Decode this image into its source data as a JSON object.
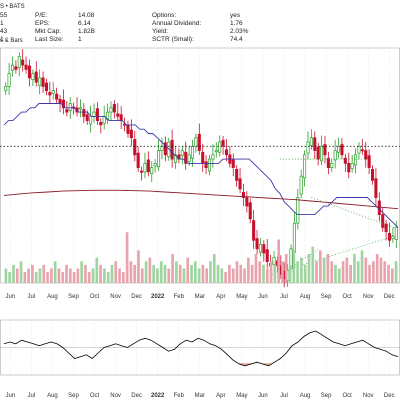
{
  "header": {
    "fragment_top": "S • BATS",
    "fragment_second": "s & Bars",
    "left_values": [
      "55",
      "1",
      "43",
      "1"
    ],
    "stats": [
      {
        "label": "P/E:",
        "value": "14.08"
      },
      {
        "label": "EPS:",
        "value": "6.14"
      },
      {
        "label": "Mkt Cap:",
        "value": "1.82B"
      },
      {
        "label": "Last Size:",
        "value": "1"
      }
    ],
    "stats2": [
      {
        "label": "Options:",
        "value": "yes"
      },
      {
        "label": "Annual Dividend:",
        "value": "1.76"
      },
      {
        "label": "Yield:",
        "value": "2.03%"
      },
      {
        "label": "SCTR (Small):",
        "value": "74.4"
      }
    ]
  },
  "colors": {
    "up": "#2ca02c",
    "down": "#c8102e",
    "ma_short": "#3a3aa8",
    "ma_long": "#8b1a2b",
    "volume_up": "#9fd39f",
    "volume_down": "#e8a3ad",
    "trend": "#2ca02c",
    "oscillator": "#000000",
    "oscillator_fill": "#d98b7a",
    "grid": "#cccccc"
  },
  "chart_data": {
    "type": "candlestick",
    "x_axis_labels": [
      "Jun",
      "Jul",
      "Aug",
      "Sep",
      "Oct",
      "Nov",
      "Dec",
      "2022",
      "Feb",
      "Mar",
      "Apr",
      "May",
      "Jun",
      "Jul",
      "Aug",
      "Sep",
      "Oct",
      "Nov",
      "Dec"
    ],
    "close_series": [
      66,
      69,
      71,
      70,
      73,
      71,
      70,
      68,
      69,
      67,
      68,
      66,
      65,
      64,
      65,
      63,
      62,
      61,
      60,
      62,
      61,
      60,
      61,
      59,
      58,
      59,
      60,
      58,
      57,
      59,
      60,
      61,
      60,
      59,
      58,
      57,
      55,
      54,
      50,
      47,
      46,
      48,
      46,
      47,
      48,
      51,
      52,
      50,
      53,
      49,
      50,
      49,
      51,
      48,
      50,
      52,
      54,
      51,
      48,
      47,
      49,
      50,
      51,
      53,
      52,
      50,
      48,
      47,
      44,
      42,
      40,
      38,
      35,
      30,
      28,
      29,
      27,
      25,
      24,
      26,
      24,
      22,
      21,
      23,
      28,
      34,
      40,
      45,
      50,
      53,
      54,
      51,
      49,
      52,
      50,
      47,
      48,
      51,
      52,
      50,
      48,
      46,
      48,
      50,
      52,
      51,
      49,
      47,
      44,
      40,
      36,
      33,
      32,
      30,
      31,
      33
    ],
    "ma_short_series": [
      57,
      58,
      58,
      59,
      60,
      60,
      61,
      61,
      62,
      62,
      62,
      62,
      62,
      62,
      61,
      61,
      61,
      60,
      60,
      60,
      59,
      59,
      59,
      59,
      58,
      58,
      58,
      58,
      57,
      57,
      57,
      56,
      56,
      55,
      55,
      54,
      53,
      52,
      51,
      50,
      49,
      49,
      48,
      48,
      48,
      48,
      48,
      48,
      48,
      48,
      49,
      49,
      49,
      49,
      49,
      49,
      49,
      48,
      47,
      46,
      45,
      44,
      42,
      41,
      39,
      38,
      37,
      36,
      36,
      36,
      36,
      36,
      37,
      38,
      38,
      39,
      40,
      40,
      40,
      40,
      40,
      40,
      40,
      40,
      39,
      38,
      37,
      36,
      35,
      34,
      33
    ],
    "ma_long_series": [
      40.5,
      40.8,
      41.1,
      41.3,
      41.5,
      41.6,
      41.7,
      41.7,
      41.7,
      41.6,
      41.5,
      41.3,
      41.1,
      40.9,
      40.7,
      40.5,
      40.3,
      40.1,
      39.9,
      39.7,
      39.5,
      39.2,
      38.9,
      38.6,
      38.3,
      38.0,
      37.7,
      37.4
    ],
    "reference_level": 52,
    "volume_series": [
      4,
      3,
      5,
      4,
      6,
      3,
      4,
      5,
      3,
      4,
      5,
      3,
      4,
      6,
      4,
      3,
      5,
      4,
      3,
      4,
      6,
      5,
      3,
      4,
      7,
      5,
      4,
      3,
      5,
      6,
      4,
      3,
      14,
      6,
      5,
      9,
      4,
      6,
      7,
      5,
      4,
      6,
      5,
      4,
      8,
      6,
      5,
      4,
      7,
      5,
      6,
      4,
      5,
      4,
      6,
      8,
      5,
      4,
      3,
      5,
      4,
      6,
      5,
      4,
      7,
      5,
      8,
      6,
      5,
      4,
      6,
      5,
      12,
      6,
      8,
      5,
      9,
      6,
      7,
      5,
      8,
      10,
      6,
      9,
      7,
      8,
      6,
      5,
      4,
      6,
      7,
      5,
      8,
      6,
      9,
      7,
      5,
      6,
      8,
      7,
      6,
      5,
      4,
      6
    ],
    "oscillator_series": [
      0.2,
      0.3,
      0.2,
      0.4,
      0.3,
      0.2,
      0.1,
      0.2,
      0.3,
      0.2,
      0.0,
      -0.3,
      -0.6,
      -0.5,
      -0.4,
      -0.6,
      -0.3,
      0.0,
      0.1,
      0.2,
      0.1,
      0.0,
      0.2,
      0.4,
      0.5,
      0.4,
      0.2,
      0.0,
      -0.2,
      -0.1,
      0.2,
      0.4,
      0.3,
      0.5,
      0.4,
      0.2,
      0.1,
      -0.1,
      -0.4,
      -0.7,
      -0.9,
      -1.0,
      -0.9,
      -0.8,
      -0.9,
      -1.0,
      -0.8,
      -0.6,
      -0.3,
      0.1,
      0.3,
      0.6,
      0.8,
      0.9,
      0.7,
      0.5,
      0.3,
      0.2,
      0.1,
      0.2,
      0.3,
      0.4,
      0.2,
      0.0,
      -0.1,
      -0.2,
      -0.4,
      -0.5
    ],
    "ylim": [
      20,
      75
    ],
    "volume_ylim": [
      0,
      16
    ],
    "oscillator_ylim": [
      -1.5,
      1.5
    ]
  }
}
